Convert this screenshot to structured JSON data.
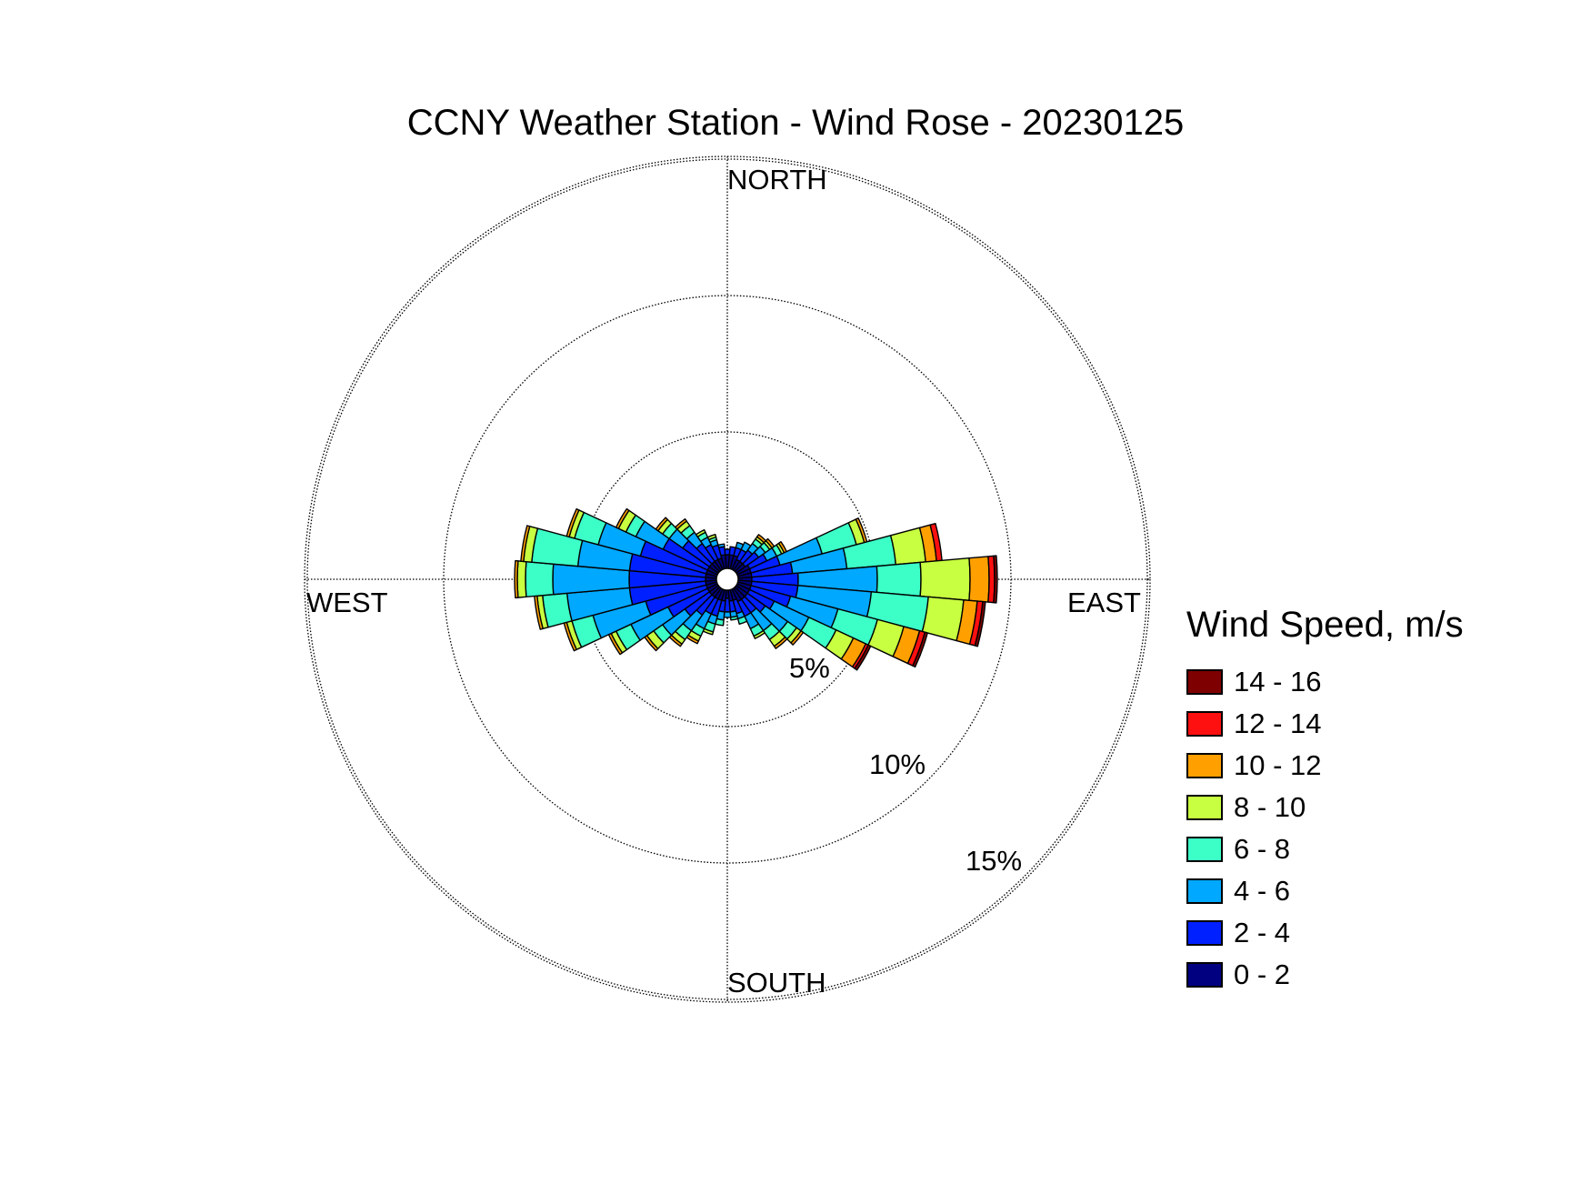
{
  "chart_data": {
    "type": "wind-rose",
    "title": "CCNY Weather Station - Wind Rose - 20230125",
    "direction_labels": {
      "north": "NORTH",
      "east": "EAST",
      "south": "SOUTH",
      "west": "WEST"
    },
    "ring_values": [
      5,
      10,
      15
    ],
    "ring_labels": [
      "5%",
      "10%",
      "15%"
    ],
    "grid": true,
    "legend": {
      "title": "Wind Speed, m/s",
      "placement": "right",
      "bins": [
        {
          "label": "14 - 16",
          "color": "#7f0000"
        },
        {
          "label": "12 - 14",
          "color": "#ff1010"
        },
        {
          "label": "10 - 12",
          "color": "#ffa000"
        },
        {
          "label": "8 - 10",
          "color": "#c8ff40"
        },
        {
          "label": "6 - 8",
          "color": "#3cffc8"
        },
        {
          "label": "4 - 6",
          "color": "#00a8ff"
        },
        {
          "label": "2 - 4",
          "color": "#0020ff"
        },
        {
          "label": "0 - 2",
          "color": "#000080"
        }
      ]
    },
    "speed_bins": [
      "0 - 2",
      "2 - 4",
      "4 - 6",
      "6 - 8",
      "8 - 10",
      "10 - 12",
      "12 - 14",
      "14 - 16"
    ],
    "sector_width_deg": 10,
    "sectors": [
      {
        "direction": 0,
        "values": [
          0.5,
          0.2,
          0,
          0,
          0,
          0,
          0,
          0
        ]
      },
      {
        "direction": 10,
        "values": [
          0.5,
          0.3,
          0,
          0,
          0,
          0,
          0,
          0
        ]
      },
      {
        "direction": 20,
        "values": [
          0.5,
          0.3,
          0.2,
          0,
          0,
          0,
          0,
          0
        ]
      },
      {
        "direction": 30,
        "values": [
          0.4,
          0.4,
          0.3,
          0,
          0,
          0,
          0,
          0
        ]
      },
      {
        "direction": 40,
        "values": [
          0.4,
          0.5,
          0.3,
          0.2,
          0.1,
          0.1,
          0,
          0
        ]
      },
      {
        "direction": 50,
        "values": [
          0.4,
          0.6,
          0.3,
          0.2,
          0.1,
          0.1,
          0,
          0
        ]
      },
      {
        "direction": 60,
        "values": [
          0.5,
          0.7,
          0.4,
          0.2,
          0.1,
          0.1,
          0,
          0
        ]
      },
      {
        "direction": 70,
        "values": [
          0.5,
          1.1,
          1.6,
          1.3,
          0.3,
          0.1,
          0,
          0
        ]
      },
      {
        "direction": 80,
        "values": [
          0.5,
          1.5,
          2.0,
          1.8,
          1.1,
          0.4,
          0.2,
          0
        ]
      },
      {
        "direction": 90,
        "values": [
          0.5,
          1.7,
          2.9,
          1.6,
          1.8,
          0.7,
          0.2,
          0.1
        ]
      },
      {
        "direction": 100,
        "values": [
          0.5,
          1.7,
          2.7,
          2.1,
          1.3,
          0.5,
          0.2,
          0.1
        ]
      },
      {
        "direction": 110,
        "values": [
          0.5,
          1.5,
          1.8,
          1.5,
          1.0,
          0.6,
          0.2,
          0.1
        ]
      },
      {
        "direction": 120,
        "values": [
          0.5,
          1.0,
          1.4,
          1.1,
          0.7,
          0.5,
          0.1,
          0.1
        ]
      },
      {
        "direction": 130,
        "values": [
          0.5,
          0.8,
          1.0,
          0.4,
          0.2,
          0.1,
          0,
          0
        ]
      },
      {
        "direction": 140,
        "values": [
          0.5,
          0.6,
          0.8,
          0.4,
          0.3,
          0.1,
          0,
          0
        ]
      },
      {
        "direction": 150,
        "values": [
          0.5,
          0.6,
          0.5,
          0.3,
          0.1,
          0,
          0,
          0
        ]
      },
      {
        "direction": 160,
        "values": [
          0.4,
          0.5,
          0.2,
          0.2,
          0,
          0,
          0,
          0
        ]
      },
      {
        "direction": 170,
        "values": [
          0.4,
          0.4,
          0.2,
          0.1,
          0,
          0,
          0,
          0
        ]
      },
      {
        "direction": 180,
        "values": [
          0.3,
          0.5,
          0.2,
          0,
          0,
          0,
          0,
          0
        ]
      },
      {
        "direction": 190,
        "values": [
          0.4,
          0.4,
          0.3,
          0.2,
          0,
          0,
          0,
          0
        ]
      },
      {
        "direction": 200,
        "values": [
          0.4,
          0.6,
          0.3,
          0.3,
          0.1,
          0,
          0,
          0
        ]
      },
      {
        "direction": 210,
        "values": [
          0.4,
          0.6,
          0.6,
          0.3,
          0.2,
          0.1,
          0,
          0
        ]
      },
      {
        "direction": 220,
        "values": [
          0.4,
          0.8,
          0.7,
          0.4,
          0.2,
          0.1,
          0,
          0
        ]
      },
      {
        "direction": 230,
        "values": [
          0.4,
          1.1,
          1.0,
          0.4,
          0.3,
          0.1,
          0,
          0
        ]
      },
      {
        "direction": 240,
        "values": [
          0.4,
          1.6,
          1.5,
          0.6,
          0.2,
          0.1,
          0,
          0
        ]
      },
      {
        "direction": 250,
        "values": [
          0.4,
          2.3,
          2.0,
          0.8,
          0.2,
          0.1,
          0,
          0
        ]
      },
      {
        "direction": 260,
        "values": [
          0.4,
          2.8,
          2.3,
          0.9,
          0.2,
          0.1,
          0,
          0
        ]
      },
      {
        "direction": 270,
        "values": [
          0.4,
          2.8,
          2.8,
          1.0,
          0.3,
          0.1,
          0,
          0
        ]
      },
      {
        "direction": 280,
        "values": [
          0.4,
          2.8,
          1.9,
          1.7,
          0.3,
          0.1,
          0,
          0
        ]
      },
      {
        "direction": 290,
        "values": [
          0.4,
          2.5,
          1.6,
          0.9,
          0.2,
          0.1,
          0,
          0
        ]
      },
      {
        "direction": 300,
        "values": [
          0.4,
          1.8,
          1.1,
          0.4,
          0.3,
          0.1,
          0,
          0
        ]
      },
      {
        "direction": 310,
        "values": [
          0.4,
          1.2,
          0.6,
          0.3,
          0.2,
          0.1,
          0,
          0
        ]
      },
      {
        "direction": 320,
        "values": [
          0.4,
          0.8,
          0.5,
          0.3,
          0.2,
          0.1,
          0,
          0
        ]
      },
      {
        "direction": 330,
        "values": [
          0.4,
          0.6,
          0.3,
          0.2,
          0.1,
          0,
          0,
          0
        ]
      },
      {
        "direction": 340,
        "values": [
          0.4,
          0.5,
          0.2,
          0.1,
          0.1,
          0,
          0,
          0
        ]
      },
      {
        "direction": 350,
        "values": [
          0.5,
          0.3,
          0.1,
          0,
          0,
          0,
          0,
          0
        ]
      }
    ]
  }
}
